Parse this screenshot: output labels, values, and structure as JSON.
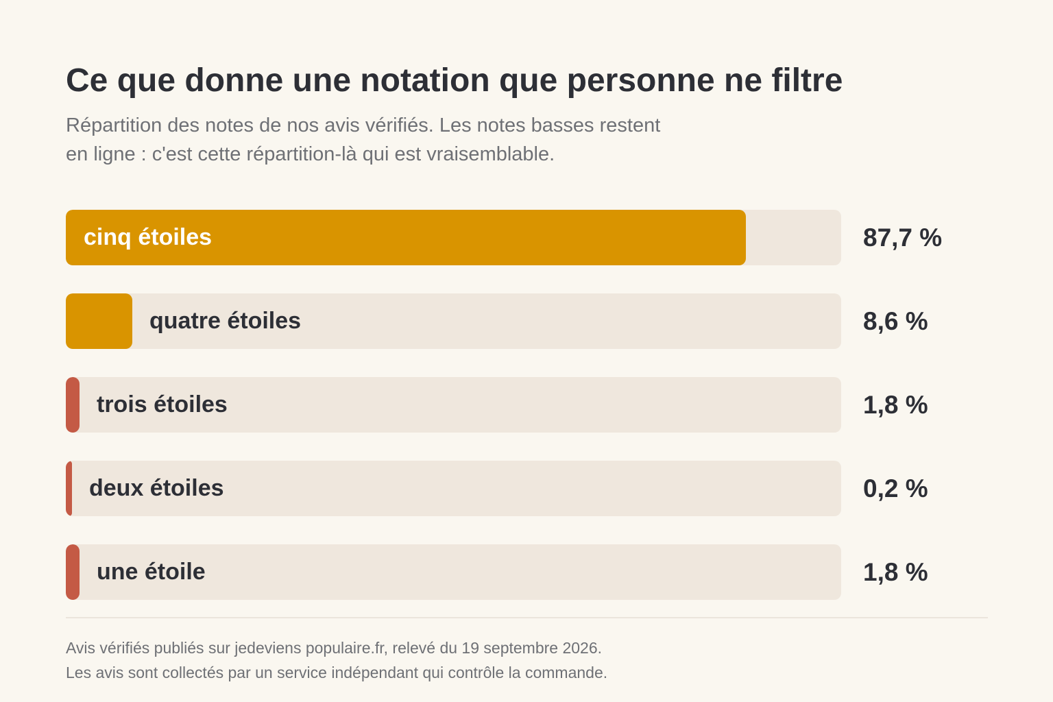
{
  "header": {
    "title": "Ce que donne une notation que personne ne filtre",
    "subtitle_line1": "Répartition des notes de nos avis vérifiés. Les notes basses restent",
    "subtitle_line2": "en ligne : c'est cette répartition-là qui est vraisemblable."
  },
  "chart_data": {
    "type": "bar",
    "orientation": "horizontal",
    "title": "Ce que donne une notation que personne ne filtre",
    "categories": [
      "cinq étoiles",
      "quatre étoiles",
      "trois étoiles",
      "deux étoiles",
      "une étoile"
    ],
    "values": [
      87.7,
      8.6,
      1.8,
      0.2,
      1.8
    ],
    "value_labels": [
      "87,7 %",
      "8,6 %",
      "1,8 %",
      "0,2 %",
      "1,8 %"
    ],
    "xlim": [
      0,
      100
    ],
    "unit": "%",
    "grid": false,
    "legend": "none",
    "bar_colors": [
      "#d99400",
      "#d99400",
      "#c45a45",
      "#c45a45",
      "#c45a45"
    ],
    "track_color": "#efe7dd"
  },
  "footer": {
    "line1": "Avis vérifiés publiés sur jedeviens populaire.fr, relevé du 19 septembre 2026.",
    "line2": "Les avis sont collectés par un service indépendant qui contrôle la commande."
  }
}
